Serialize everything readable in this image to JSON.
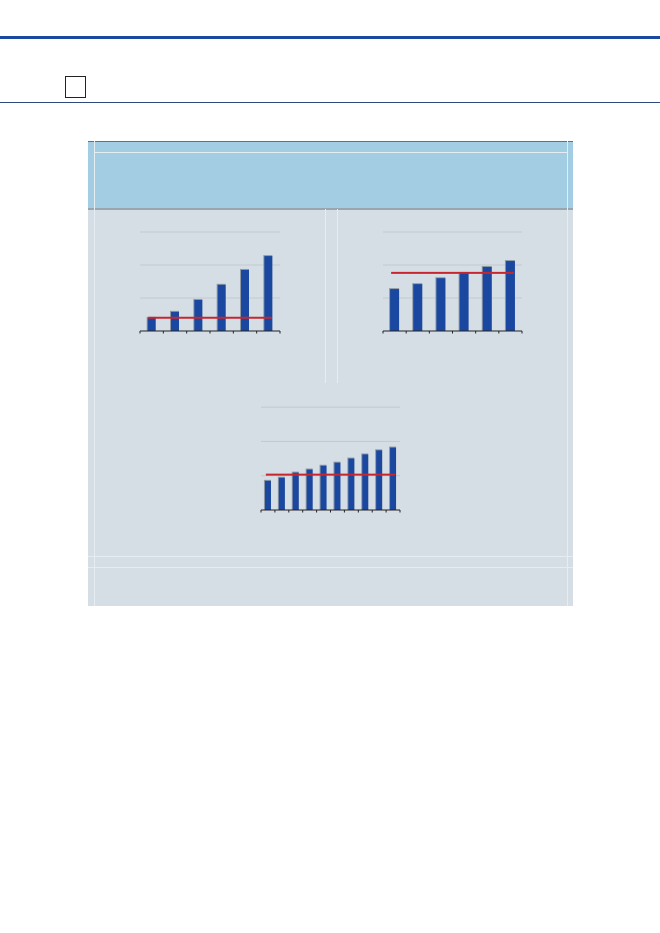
{
  "colors": {
    "bar": "#1a47a0",
    "reference_line": "#c8262f",
    "header_band": "#a2cde3",
    "panel": "#d6dee5",
    "accent_rule": "#1a4aa0"
  },
  "chart_data": [
    {
      "type": "bar",
      "ylim": [
        0,
        3
      ],
      "grid": true,
      "categories": [
        "",
        "",
        "",
        "",
        "",
        ""
      ],
      "values": [
        0.4,
        0.58,
        0.94,
        1.4,
        1.85,
        2.27
      ],
      "reference_line": 0.4
    },
    {
      "type": "bar",
      "ylim": [
        0,
        3
      ],
      "grid": true,
      "categories": [
        "",
        "",
        "",
        "",
        "",
        ""
      ],
      "values": [
        1.27,
        1.42,
        1.6,
        1.76,
        1.94,
        2.12
      ],
      "reference_line": 1.76
    },
    {
      "type": "bar",
      "ylim": [
        0,
        3
      ],
      "grid": true,
      "categories": [
        "",
        "",
        "",
        "",
        "",
        "",
        "",
        "",
        "",
        ""
      ],
      "values": [
        0.85,
        0.94,
        1.09,
        1.18,
        1.29,
        1.38,
        1.5,
        1.62,
        1.74,
        1.82
      ],
      "reference_line": 1.03
    }
  ]
}
